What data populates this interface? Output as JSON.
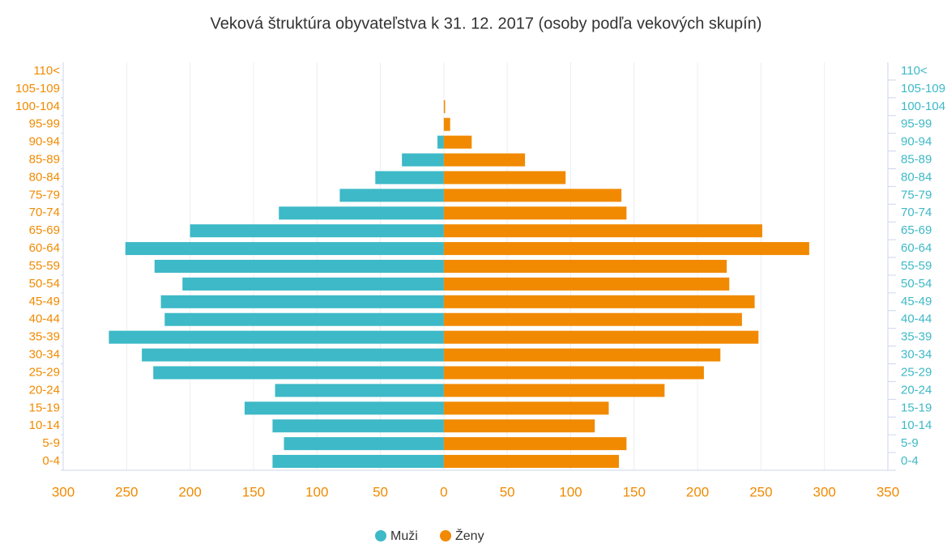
{
  "chart_data": {
    "type": "pyramid",
    "title": "Veková štruktúra obyvateľstva k 31. 12. 2017 (osoby podľa vekových skupín)",
    "categories": [
      "0-4",
      "5-9",
      "10-14",
      "15-19",
      "20-24",
      "25-29",
      "30-34",
      "35-39",
      "40-44",
      "45-49",
      "50-54",
      "55-59",
      "60-64",
      "65-69",
      "70-74",
      "75-79",
      "80-84",
      "85-89",
      "90-94",
      "95-99",
      "100-104",
      "105-109",
      "110<"
    ],
    "series": [
      {
        "name": "Muži",
        "color": "#3db9c7",
        "values": [
          -135,
          -126,
          -135,
          -157,
          -133,
          -229,
          -238,
          -264,
          -220,
          -223,
          -206,
          -228,
          -251,
          -200,
          -130,
          -82,
          -54,
          -33,
          -5,
          0,
          0,
          0,
          0
        ]
      },
      {
        "name": "Ženy",
        "color": "#f18a00",
        "values": [
          138,
          144,
          119,
          130,
          174,
          205,
          218,
          248,
          235,
          245,
          225,
          223,
          288,
          251,
          144,
          140,
          96,
          64,
          22,
          5,
          1,
          0,
          0
        ]
      }
    ],
    "xlim": [
      -300,
      350
    ],
    "xticks": [
      {
        "value": -300,
        "label": "300"
      },
      {
        "value": -250,
        "label": "250"
      },
      {
        "value": -200,
        "label": "200"
      },
      {
        "value": -150,
        "label": "150"
      },
      {
        "value": -100,
        "label": "100"
      },
      {
        "value": -50,
        "label": "50"
      },
      0,
      50,
      100,
      150,
      200,
      250,
      300,
      350
    ],
    "grid": true,
    "legend": "bottom"
  }
}
